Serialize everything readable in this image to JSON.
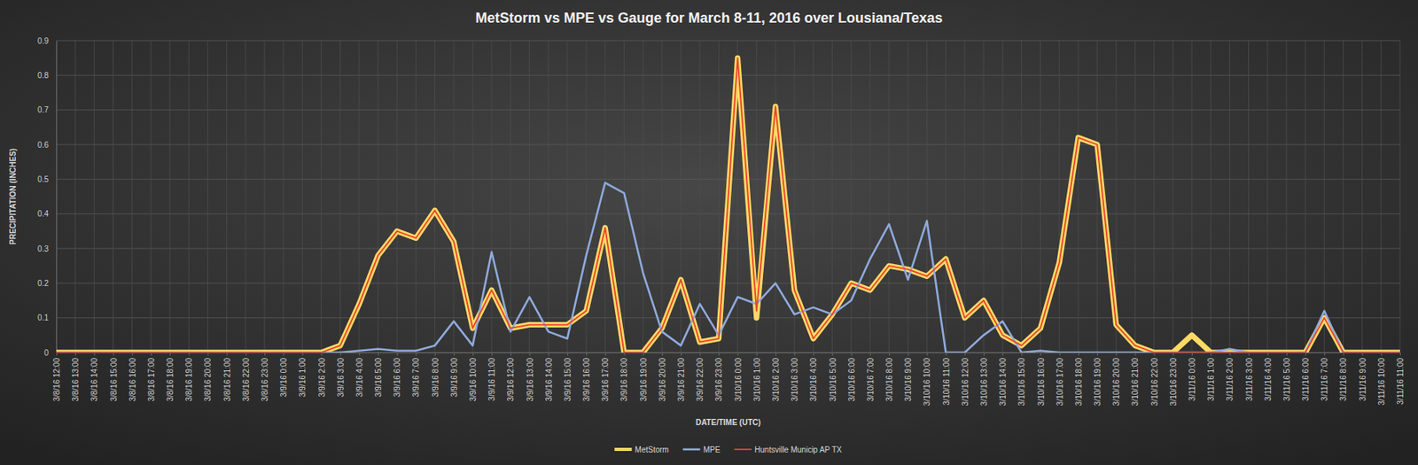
{
  "chart_data": {
    "type": "line",
    "title": "MetStorm vs MPE vs Gauge for March 8-11, 2016 over Lousiana/Texas",
    "x_label": "DATE/TIME (UTC)",
    "y_label": "PRECIPITATION (INCHES)",
    "categories": [
      "3/8/16 12:00",
      "3/8/16 13:00",
      "3/8/16 14:00",
      "3/8/16 15:00",
      "3/8/16 16:00",
      "3/8/16 17:00",
      "3/8/16 18:00",
      "3/8/16 19:00",
      "3/8/16 20:00",
      "3/8/16 21:00",
      "3/8/16 22:00",
      "3/8/16 23:00",
      "3/9/16 0:00",
      "3/9/16 1:00",
      "3/9/16 2:00",
      "3/9/16 3:00",
      "3/9/16 4:00",
      "3/9/16 5:00",
      "3/9/16 6:00",
      "3/9/16 7:00",
      "3/9/16 8:00",
      "3/9/16 9:00",
      "3/9/16 10:00",
      "3/9/16 11:00",
      "3/9/16 12:00",
      "3/9/16 13:00",
      "3/9/16 14:00",
      "3/9/16 15:00",
      "3/9/16 16:00",
      "3/9/16 17:00",
      "3/9/16 18:00",
      "3/9/16 19:00",
      "3/9/16 20:00",
      "3/9/16 21:00",
      "3/9/16 22:00",
      "3/9/16 23:00",
      "3/10/16 0:00",
      "3/10/16 1:00",
      "3/10/16 2:00",
      "3/10/16 3:00",
      "3/10/16 4:00",
      "3/10/16 5:00",
      "3/10/16 6:00",
      "3/10/16 7:00",
      "3/10/16 8:00",
      "3/10/16 9:00",
      "3/10/16 10:00",
      "3/10/16 11:00",
      "3/10/16 12:00",
      "3/10/16 13:00",
      "3/10/16 14:00",
      "3/10/16 15:00",
      "3/10/16 16:00",
      "3/10/16 17:00",
      "3/10/16 18:00",
      "3/10/16 19:00",
      "3/10/16 20:00",
      "3/10/16 21:00",
      "3/10/16 22:00",
      "3/10/16 23:00",
      "3/11/16 0:00",
      "3/11/16 1:00",
      "3/11/16 2:00",
      "3/11/16 3:00",
      "3/11/16 4:00",
      "3/11/16 5:00",
      "3/11/16 6:00",
      "3/11/16 7:00",
      "3/11/16 8:00",
      "3/11/16 9:00",
      "3/11/16 10:00",
      "3/11/16 11:00"
    ],
    "series": [
      {
        "name": "MetStorm",
        "color": "#ffd966",
        "values": [
          0,
          0,
          0,
          0,
          0,
          0,
          0,
          0,
          0,
          0,
          0,
          0,
          0,
          0,
          0,
          0.02,
          0.14,
          0.28,
          0.35,
          0.33,
          0.41,
          0.32,
          0.07,
          0.18,
          0.07,
          0.08,
          0.08,
          0.08,
          0.12,
          0.36,
          0,
          0,
          0.07,
          0.21,
          0.03,
          0.04,
          0.85,
          0.1,
          0.71,
          0.18,
          0.04,
          0.11,
          0.2,
          0.18,
          0.25,
          0.24,
          0.22,
          0.27,
          0.1,
          0.15,
          0.05,
          0.02,
          0.07,
          0.26,
          0.62,
          0.6,
          0.08,
          0.02,
          0,
          0,
          0.05,
          0,
          0,
          0,
          0,
          0,
          0,
          0.1,
          0,
          0,
          0,
          0
        ]
      },
      {
        "name": "MPE",
        "color": "#8faadc",
        "values": [
          0,
          0,
          0,
          0,
          0,
          0,
          0,
          0,
          0,
          0,
          0,
          0,
          0,
          0,
          0,
          0,
          0.005,
          0.01,
          0.005,
          0.005,
          0.02,
          0.09,
          0.02,
          0.29,
          0.06,
          0.16,
          0.06,
          0.04,
          0.28,
          0.49,
          0.46,
          0.23,
          0.06,
          0.02,
          0.14,
          0.05,
          0.16,
          0.14,
          0.2,
          0.11,
          0.13,
          0.11,
          0.15,
          0.27,
          0.37,
          0.21,
          0.38,
          0,
          0,
          0.05,
          0.09,
          0,
          0.005,
          0,
          0,
          0,
          0,
          0,
          0,
          0,
          0,
          0,
          0.01,
          0,
          0,
          0,
          0,
          0.12,
          0,
          0,
          0,
          0
        ]
      },
      {
        "name": "Huntsville Municip AP TX",
        "color": "#e8432c",
        "values": [
          0,
          0,
          0,
          0,
          0,
          0,
          0,
          0,
          0,
          0,
          0,
          0,
          0,
          0,
          0,
          0.02,
          0.14,
          0.28,
          0.35,
          0.33,
          0.41,
          0.32,
          0.07,
          0.18,
          0.07,
          0.08,
          0.08,
          0.08,
          0.12,
          0.36,
          0,
          0,
          0.07,
          0.21,
          0.03,
          0.04,
          0.85,
          0.12,
          0.71,
          0.18,
          0.04,
          0.11,
          0.2,
          0.18,
          0.25,
          0.24,
          0.22,
          0.27,
          0.1,
          0.15,
          0.05,
          0.02,
          0.07,
          0.26,
          0.62,
          0.6,
          0.08,
          0.02,
          0,
          0,
          0,
          0,
          0,
          0,
          0,
          0,
          0,
          0.1,
          0,
          0,
          0,
          0
        ]
      }
    ],
    "ylim": [
      0,
      0.9
    ],
    "yticks": [
      0,
      0.1,
      0.2,
      0.3,
      0.4,
      0.5,
      0.6,
      0.7,
      0.8,
      0.9
    ],
    "grid": true,
    "legend": "bottom",
    "marker": "none"
  }
}
